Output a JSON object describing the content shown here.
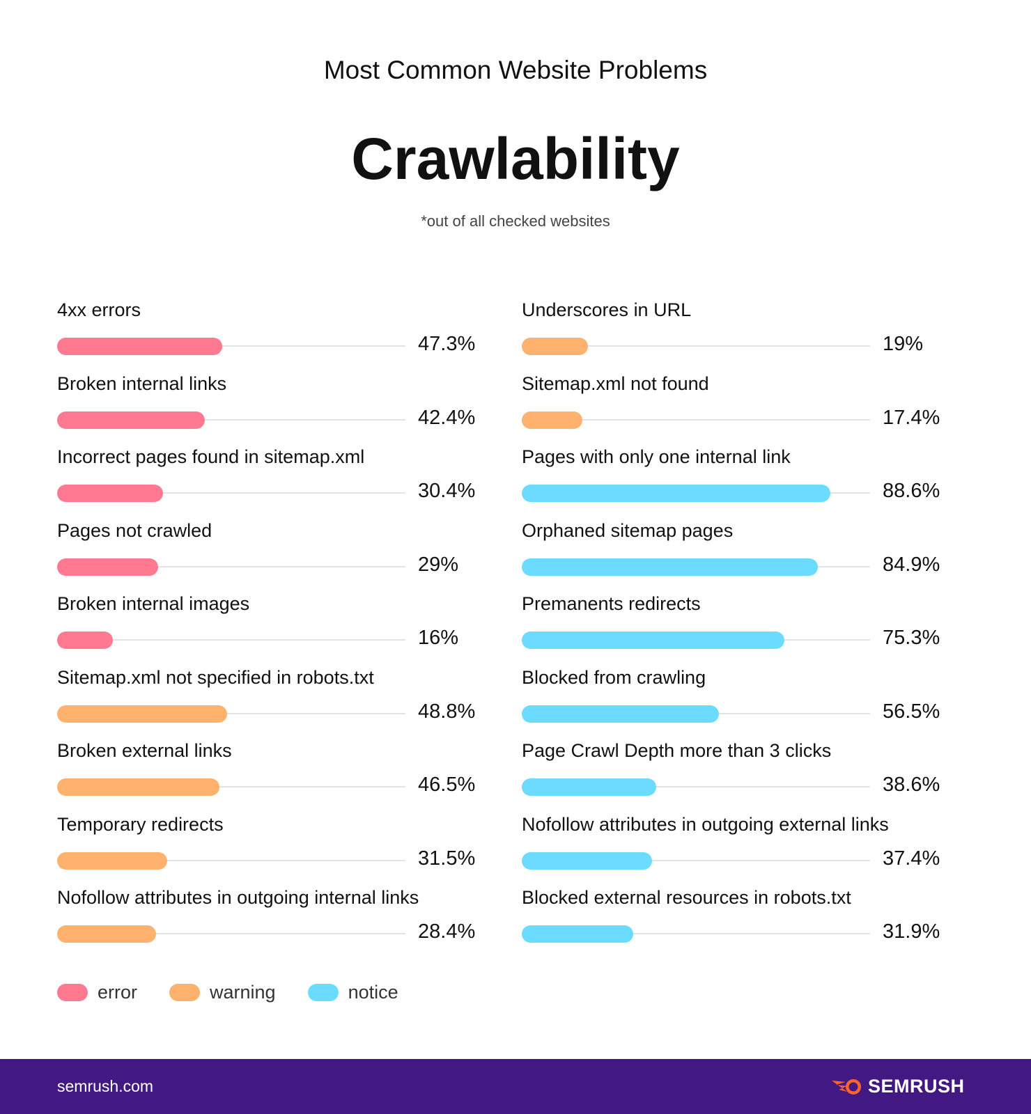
{
  "header": {
    "supertitle": "Most Common Website Problems",
    "title": "Crawlability",
    "subtitle": "*out of all checked websites"
  },
  "colors": {
    "error": "#ff7a90",
    "warning": "#ffb26d",
    "notice": "#6bdcff",
    "footer": "#421983",
    "logo_accent": "#ff642d"
  },
  "chart_data": {
    "type": "bar",
    "orientation": "horizontal",
    "xlim": [
      0,
      100
    ],
    "unit": "%",
    "columns": [
      [
        {
          "label": "4xx errors",
          "value": 47.3,
          "display": "47.3%",
          "category": "error"
        },
        {
          "label": "Broken internal links",
          "value": 42.4,
          "display": "42.4%",
          "category": "error"
        },
        {
          "label": "Incorrect pages found in sitemap.xml",
          "value": 30.4,
          "display": "30.4%",
          "category": "error"
        },
        {
          "label": "Pages not crawled",
          "value": 29,
          "display": "29%",
          "category": "error"
        },
        {
          "label": "Broken internal images",
          "value": 16,
          "display": "16%",
          "category": "error"
        },
        {
          "label": "Sitemap.xml not specified in robots.txt",
          "value": 48.8,
          "display": "48.8%",
          "category": "warning"
        },
        {
          "label": "Broken external links",
          "value": 46.5,
          "display": "46.5%",
          "category": "warning"
        },
        {
          "label": "Temporary redirects",
          "value": 31.5,
          "display": "31.5%",
          "category": "warning"
        },
        {
          "label": "Nofollow attributes in outgoing internal links",
          "value": 28.4,
          "display": "28.4%",
          "category": "warning"
        }
      ],
      [
        {
          "label": "Underscores in URL",
          "value": 19,
          "display": "19%",
          "category": "warning"
        },
        {
          "label": "Sitemap.xml not found",
          "value": 17.4,
          "display": "17.4%",
          "category": "warning"
        },
        {
          "label": "Pages with only one internal link",
          "value": 88.6,
          "display": "88.6%",
          "category": "notice"
        },
        {
          "label": "Orphaned sitemap pages",
          "value": 84.9,
          "display": "84.9%",
          "category": "notice"
        },
        {
          "label": "Premanents redirects",
          "value": 75.3,
          "display": "75.3%",
          "category": "notice"
        },
        {
          "label": "Blocked from crawling",
          "value": 56.5,
          "display": "56.5%",
          "category": "notice"
        },
        {
          "label": "Page Crawl Depth more than 3 clicks",
          "value": 38.6,
          "display": "38.6%",
          "category": "notice"
        },
        {
          "label": "Nofollow attributes in outgoing external links",
          "value": 37.4,
          "display": "37.4%",
          "category": "notice"
        },
        {
          "label": "Blocked external resources in robots.txt",
          "value": 31.9,
          "display": "31.9%",
          "category": "notice"
        }
      ]
    ],
    "legend": [
      {
        "key": "error",
        "label": "error"
      },
      {
        "key": "warning",
        "label": "warning"
      },
      {
        "key": "notice",
        "label": "notice"
      }
    ],
    "legend_position": "bottom-left"
  },
  "footer": {
    "site": "semrush.com",
    "logo": "SEMRUSH"
  }
}
